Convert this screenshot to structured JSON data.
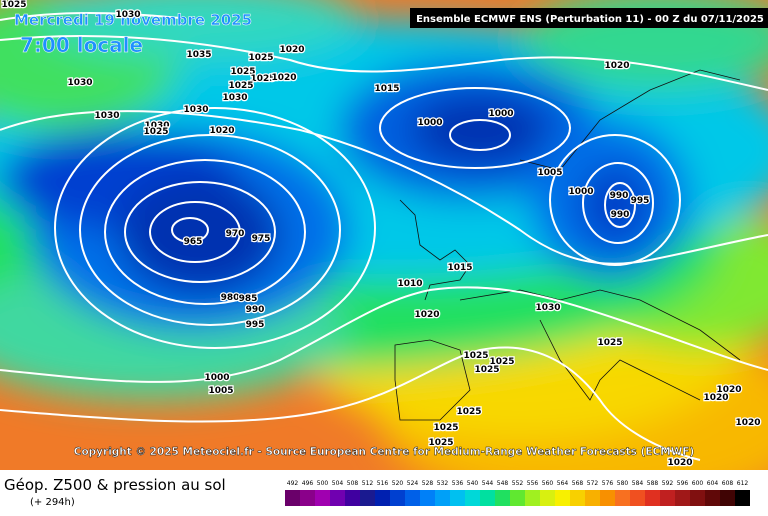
{
  "header": {
    "date": "Mercredi 19 novembre 2025",
    "time": "7:00 locale",
    "model": "Ensemble ECMWF ENS  (Perturbation 11)  -  00 Z du 07/11/2025"
  },
  "copyright": "Copyright © 2025 Meteociel.fr - Source European Centre for Medium-Range Weather Forecasts (ECMWF)",
  "footer": {
    "title": "Géop. Z500 & pression au sol",
    "lead": "(+ 294h)"
  },
  "isobar_labels": [
    "1025",
    "1030",
    "1035",
    "1025",
    "1020",
    "1025",
    "1025",
    "1020",
    "1025",
    "1030",
    "1030",
    "1030",
    "1030",
    "1030",
    "1025",
    "1020",
    "1015",
    "1000",
    "1000",
    "1005",
    "1000",
    "990",
    "995",
    "990",
    "1020",
    "965",
    "970",
    "975",
    "980",
    "985",
    "990",
    "995",
    "1015",
    "1010",
    "1020",
    "1030",
    "1025",
    "1025",
    "1025",
    "1025",
    "1000",
    "1005",
    "1025",
    "1025",
    "1025",
    "1020",
    "1020",
    "1020",
    "1020"
  ],
  "legend": {
    "values": [
      "492",
      "496",
      "500",
      "504",
      "508",
      "512",
      "516",
      "520",
      "524",
      "528",
      "532",
      "536",
      "540",
      "544",
      "548",
      "552",
      "556",
      "560",
      "564",
      "568",
      "572",
      "576",
      "580",
      "584",
      "588",
      "592",
      "596",
      "600",
      "604",
      "608",
      "612"
    ],
    "colors": [
      "#6a006a",
      "#8a008a",
      "#a000b0",
      "#7000b0",
      "#4000a0",
      "#1a1a90",
      "#0020b0",
      "#0040d0",
      "#0060e8",
      "#0080f8",
      "#00a0f8",
      "#00c0f0",
      "#00d8d8",
      "#00e0a0",
      "#20e060",
      "#60e830",
      "#a0f020",
      "#d8f010",
      "#f8f000",
      "#f8d000",
      "#f8b000",
      "#f89000",
      "#f87020",
      "#f05020",
      "#e03020",
      "#c02020",
      "#a01818",
      "#801010",
      "#600808",
      "#400404",
      "#000000"
    ]
  }
}
